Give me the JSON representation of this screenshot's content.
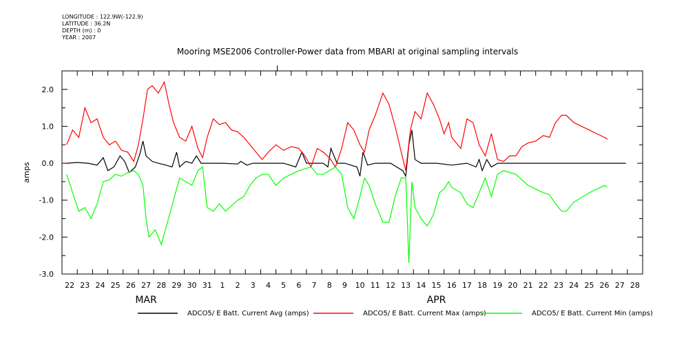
{
  "meta": {
    "longitude": "LONGITUDE : 122.9W(-122.9)",
    "latitude": "LATITUDE : 36.2N",
    "depth": "DEPTH (m) : 0",
    "year": "YEAR : 2007"
  },
  "chart_data": {
    "type": "line",
    "title": "Mooring MSE2006 Controller-Power data from MBARI at original sampling intervals",
    "ylabel": "amps",
    "ylim": [
      -3.0,
      2.5
    ],
    "xlim": [
      21.5,
      59.5
    ],
    "y_ticks": [
      "2.0",
      "1.0",
      "0.0",
      "-1.0",
      "-2.0",
      "-3.0"
    ],
    "x_ticks": [
      "22",
      "23",
      "24",
      "25",
      "26",
      "27",
      "28",
      "29",
      "30",
      "31",
      "1",
      "2",
      "3",
      "4",
      "5",
      "6",
      "7",
      "8",
      "9",
      "10",
      "11",
      "12",
      "13",
      "14",
      "15",
      "16",
      "17",
      "18",
      "19",
      "20",
      "21",
      "22",
      "23",
      "24",
      "25",
      "26",
      "27",
      "28"
    ],
    "month_labels": [
      {
        "label": "MAR",
        "at": 27
      },
      {
        "label": "APR",
        "at": 46
      }
    ],
    "series": [
      {
        "name": "ADCO5/ E Batt. Current Avg (amps)",
        "color": "#000000",
        "points": [
          [
            21.8,
            0.0
          ],
          [
            22.5,
            0.02
          ],
          [
            23.2,
            0.0
          ],
          [
            23.8,
            -0.05
          ],
          [
            24.2,
            0.15
          ],
          [
            24.5,
            -0.2
          ],
          [
            24.9,
            -0.1
          ],
          [
            25.3,
            0.2
          ],
          [
            25.6,
            0.05
          ],
          [
            25.9,
            -0.25
          ],
          [
            26.3,
            -0.1
          ],
          [
            26.6,
            0.25
          ],
          [
            26.8,
            0.6
          ],
          [
            27.0,
            0.2
          ],
          [
            27.4,
            0.05
          ],
          [
            27.8,
            0.0
          ],
          [
            28.3,
            -0.05
          ],
          [
            28.7,
            -0.1
          ],
          [
            29.0,
            0.3
          ],
          [
            29.2,
            -0.1
          ],
          [
            29.6,
            0.05
          ],
          [
            30.0,
            0.0
          ],
          [
            30.3,
            0.2
          ],
          [
            30.6,
            0.0
          ],
          [
            31.0,
            0.0
          ],
          [
            32.0,
            0.0
          ],
          [
            33.0,
            -0.02
          ],
          [
            33.2,
            0.05
          ],
          [
            33.6,
            -0.05
          ],
          [
            34.0,
            0.0
          ],
          [
            35.0,
            0.0
          ],
          [
            36.0,
            0.0
          ],
          [
            36.8,
            -0.1
          ],
          [
            37.2,
            0.3
          ],
          [
            37.5,
            0.0
          ],
          [
            38.0,
            0.0
          ],
          [
            38.6,
            0.0
          ],
          [
            38.9,
            -0.1
          ],
          [
            39.1,
            0.4
          ],
          [
            39.5,
            0.0
          ],
          [
            40.0,
            0.0
          ],
          [
            40.8,
            -0.1
          ],
          [
            41.0,
            -0.35
          ],
          [
            41.2,
            0.3
          ],
          [
            41.5,
            -0.05
          ],
          [
            42.0,
            0.0
          ],
          [
            43.0,
            0.0
          ],
          [
            43.8,
            -0.2
          ],
          [
            44.0,
            -0.35
          ],
          [
            44.2,
            0.5
          ],
          [
            44.4,
            0.9
          ],
          [
            44.6,
            0.1
          ],
          [
            45.0,
            0.0
          ],
          [
            46.0,
            0.0
          ],
          [
            47.0,
            -0.05
          ],
          [
            48.0,
            0.0
          ],
          [
            48.6,
            -0.1
          ],
          [
            48.8,
            0.1
          ],
          [
            49.0,
            -0.2
          ],
          [
            49.3,
            0.1
          ],
          [
            49.6,
            -0.1
          ],
          [
            50.0,
            0.0
          ],
          [
            51.0,
            0.0
          ],
          [
            52.0,
            0.0
          ],
          [
            53.0,
            0.0
          ],
          [
            54.0,
            0.0
          ],
          [
            55.0,
            0.0
          ],
          [
            56.0,
            0.0
          ],
          [
            57.0,
            0.0
          ],
          [
            58.4,
            0.0
          ]
        ]
      },
      {
        "name": "ADCO5/ E Batt. Current Max (amps)",
        "color": "#ff0000",
        "points": [
          [
            21.8,
            0.5
          ],
          [
            22.2,
            0.9
          ],
          [
            22.6,
            0.7
          ],
          [
            23.0,
            1.5
          ],
          [
            23.4,
            1.1
          ],
          [
            23.8,
            1.2
          ],
          [
            24.2,
            0.7
          ],
          [
            24.6,
            0.5
          ],
          [
            25.0,
            0.6
          ],
          [
            25.4,
            0.35
          ],
          [
            25.8,
            0.3
          ],
          [
            26.2,
            0.05
          ],
          [
            26.5,
            0.5
          ],
          [
            26.8,
            1.2
          ],
          [
            27.1,
            2.0
          ],
          [
            27.4,
            2.1
          ],
          [
            27.8,
            1.9
          ],
          [
            28.2,
            2.2
          ],
          [
            28.5,
            1.6
          ],
          [
            28.8,
            1.1
          ],
          [
            29.2,
            0.7
          ],
          [
            29.6,
            0.6
          ],
          [
            30.0,
            1.0
          ],
          [
            30.4,
            0.4
          ],
          [
            30.7,
            0.15
          ],
          [
            31.0,
            0.7
          ],
          [
            31.4,
            1.2
          ],
          [
            31.8,
            1.05
          ],
          [
            32.2,
            1.1
          ],
          [
            32.6,
            0.9
          ],
          [
            33.0,
            0.85
          ],
          [
            33.4,
            0.7
          ],
          [
            33.8,
            0.5
          ],
          [
            34.2,
            0.3
          ],
          [
            34.6,
            0.1
          ],
          [
            35.0,
            0.3
          ],
          [
            35.5,
            0.5
          ],
          [
            36.0,
            0.35
          ],
          [
            36.5,
            0.45
          ],
          [
            37.0,
            0.4
          ],
          [
            37.4,
            0.2
          ],
          [
            37.8,
            -0.1
          ],
          [
            38.2,
            0.4
          ],
          [
            38.6,
            0.3
          ],
          [
            39.0,
            0.15
          ],
          [
            39.4,
            -0.1
          ],
          [
            39.8,
            0.4
          ],
          [
            40.2,
            1.1
          ],
          [
            40.6,
            0.9
          ],
          [
            41.0,
            0.5
          ],
          [
            41.3,
            0.3
          ],
          [
            41.6,
            0.9
          ],
          [
            42.0,
            1.3
          ],
          [
            42.5,
            1.9
          ],
          [
            42.9,
            1.6
          ],
          [
            43.3,
            1.0
          ],
          [
            43.7,
            0.3
          ],
          [
            44.0,
            -0.2
          ],
          [
            44.3,
            0.9
          ],
          [
            44.6,
            1.4
          ],
          [
            45.0,
            1.2
          ],
          [
            45.4,
            1.9
          ],
          [
            45.8,
            1.6
          ],
          [
            46.2,
            1.2
          ],
          [
            46.5,
            0.8
          ],
          [
            46.8,
            1.1
          ],
          [
            47.0,
            0.7
          ],
          [
            47.6,
            0.4
          ],
          [
            48.0,
            1.2
          ],
          [
            48.4,
            1.1
          ],
          [
            48.8,
            0.5
          ],
          [
            49.2,
            0.2
          ],
          [
            49.6,
            0.8
          ],
          [
            50.0,
            0.1
          ],
          [
            50.4,
            0.05
          ],
          [
            50.8,
            0.2
          ],
          [
            51.2,
            0.2
          ],
          [
            51.6,
            0.45
          ],
          [
            52.0,
            0.55
          ],
          [
            52.5,
            0.6
          ],
          [
            53.0,
            0.75
          ],
          [
            53.4,
            0.7
          ],
          [
            53.8,
            1.1
          ],
          [
            54.2,
            1.3
          ],
          [
            54.5,
            1.3
          ],
          [
            55.0,
            1.1
          ],
          [
            56.0,
            0.9
          ],
          [
            57.0,
            0.7
          ],
          [
            57.2,
            0.65
          ]
        ]
      },
      {
        "name": "ADCO5/ E Batt. Current Min (amps)",
        "color": "#00ff00",
        "points": [
          [
            21.8,
            -0.3
          ],
          [
            22.2,
            -0.8
          ],
          [
            22.6,
            -1.3
          ],
          [
            23.0,
            -1.2
          ],
          [
            23.4,
            -1.5
          ],
          [
            23.8,
            -1.1
          ],
          [
            24.2,
            -0.5
          ],
          [
            24.6,
            -0.45
          ],
          [
            25.0,
            -0.3
          ],
          [
            25.4,
            -0.35
          ],
          [
            25.8,
            -0.25
          ],
          [
            26.2,
            -0.2
          ],
          [
            26.5,
            -0.3
          ],
          [
            26.8,
            -0.6
          ],
          [
            27.0,
            -1.5
          ],
          [
            27.2,
            -2.0
          ],
          [
            27.6,
            -1.8
          ],
          [
            28.0,
            -2.2
          ],
          [
            28.4,
            -1.6
          ],
          [
            28.8,
            -1.0
          ],
          [
            29.2,
            -0.4
          ],
          [
            29.6,
            -0.5
          ],
          [
            30.0,
            -0.6
          ],
          [
            30.4,
            -0.2
          ],
          [
            30.7,
            -0.1
          ],
          [
            31.0,
            -1.2
          ],
          [
            31.4,
            -1.3
          ],
          [
            31.8,
            -1.1
          ],
          [
            32.2,
            -1.3
          ],
          [
            32.6,
            -1.15
          ],
          [
            33.0,
            -1.0
          ],
          [
            33.4,
            -0.9
          ],
          [
            33.8,
            -0.6
          ],
          [
            34.2,
            -0.4
          ],
          [
            34.6,
            -0.3
          ],
          [
            35.0,
            -0.3
          ],
          [
            35.5,
            -0.6
          ],
          [
            36.0,
            -0.4
          ],
          [
            36.5,
            -0.3
          ],
          [
            37.0,
            -0.2
          ],
          [
            37.4,
            -0.15
          ],
          [
            37.8,
            -0.1
          ],
          [
            38.2,
            -0.3
          ],
          [
            38.6,
            -0.3
          ],
          [
            39.0,
            -0.2
          ],
          [
            39.4,
            -0.1
          ],
          [
            39.8,
            -0.3
          ],
          [
            40.2,
            -1.2
          ],
          [
            40.6,
            -1.5
          ],
          [
            41.0,
            -0.9
          ],
          [
            41.3,
            -0.4
          ],
          [
            41.6,
            -0.6
          ],
          [
            42.0,
            -1.1
          ],
          [
            42.5,
            -1.6
          ],
          [
            42.9,
            -1.6
          ],
          [
            43.3,
            -0.9
          ],
          [
            43.7,
            -0.4
          ],
          [
            44.0,
            -0.4
          ],
          [
            44.2,
            -2.7
          ],
          [
            44.4,
            -0.5
          ],
          [
            44.6,
            -1.2
          ],
          [
            45.0,
            -1.5
          ],
          [
            45.4,
            -1.7
          ],
          [
            45.8,
            -1.4
          ],
          [
            46.2,
            -0.8
          ],
          [
            46.5,
            -0.7
          ],
          [
            46.8,
            -0.5
          ],
          [
            47.0,
            -0.65
          ],
          [
            47.6,
            -0.8
          ],
          [
            48.0,
            -1.1
          ],
          [
            48.4,
            -1.2
          ],
          [
            48.8,
            -0.8
          ],
          [
            49.2,
            -0.4
          ],
          [
            49.6,
            -0.9
          ],
          [
            50.0,
            -0.3
          ],
          [
            50.4,
            -0.2
          ],
          [
            50.8,
            -0.25
          ],
          [
            51.2,
            -0.3
          ],
          [
            51.6,
            -0.45
          ],
          [
            52.0,
            -0.6
          ],
          [
            52.5,
            -0.7
          ],
          [
            53.0,
            -0.8
          ],
          [
            53.4,
            -0.85
          ],
          [
            53.8,
            -1.1
          ],
          [
            54.2,
            -1.3
          ],
          [
            54.5,
            -1.3
          ],
          [
            55.0,
            -1.05
          ],
          [
            56.0,
            -0.8
          ],
          [
            57.0,
            -0.6
          ],
          [
            57.2,
            -0.65
          ]
        ]
      }
    ],
    "legend_position": "bottom"
  }
}
